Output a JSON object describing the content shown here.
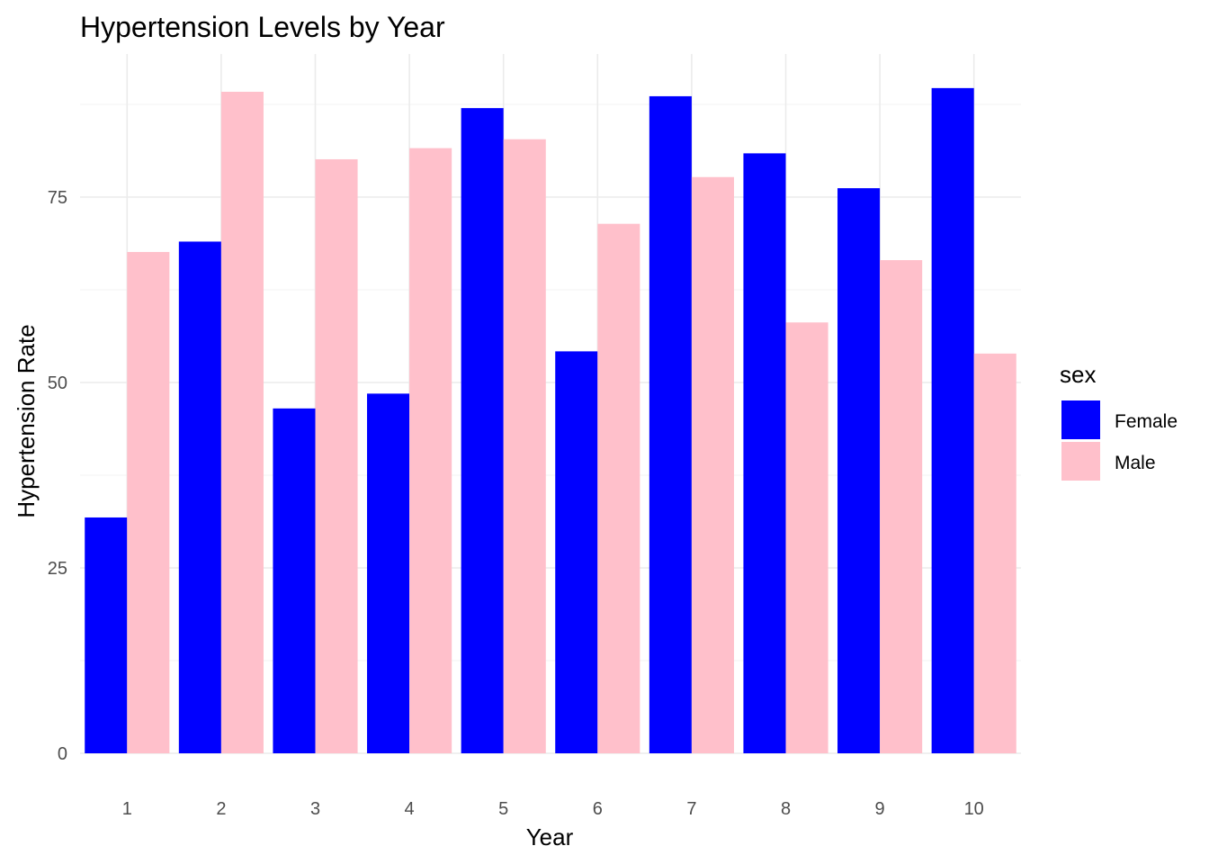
{
  "chart_data": {
    "type": "bar",
    "title": "Hypertension Levels by Year",
    "xlabel": "Year",
    "ylabel": "Hypertension Rate",
    "categories": [
      "1",
      "2",
      "3",
      "4",
      "5",
      "6",
      "7",
      "8",
      "9",
      "10"
    ],
    "series": [
      {
        "name": "Female",
        "color": "#0000ff",
        "values": [
          31.8,
          69.0,
          46.5,
          48.5,
          87.0,
          54.2,
          88.6,
          80.9,
          76.2,
          89.7
        ]
      },
      {
        "name": "Male",
        "color": "#ffc0cb",
        "values": [
          67.6,
          89.2,
          80.1,
          81.6,
          82.8,
          71.4,
          77.7,
          58.1,
          66.5,
          53.9
        ]
      }
    ],
    "ylim": [
      0,
      95
    ],
    "yticks": [
      0,
      25,
      50,
      75
    ],
    "grid": true,
    "legend": {
      "title": "sex",
      "position": "right"
    }
  }
}
